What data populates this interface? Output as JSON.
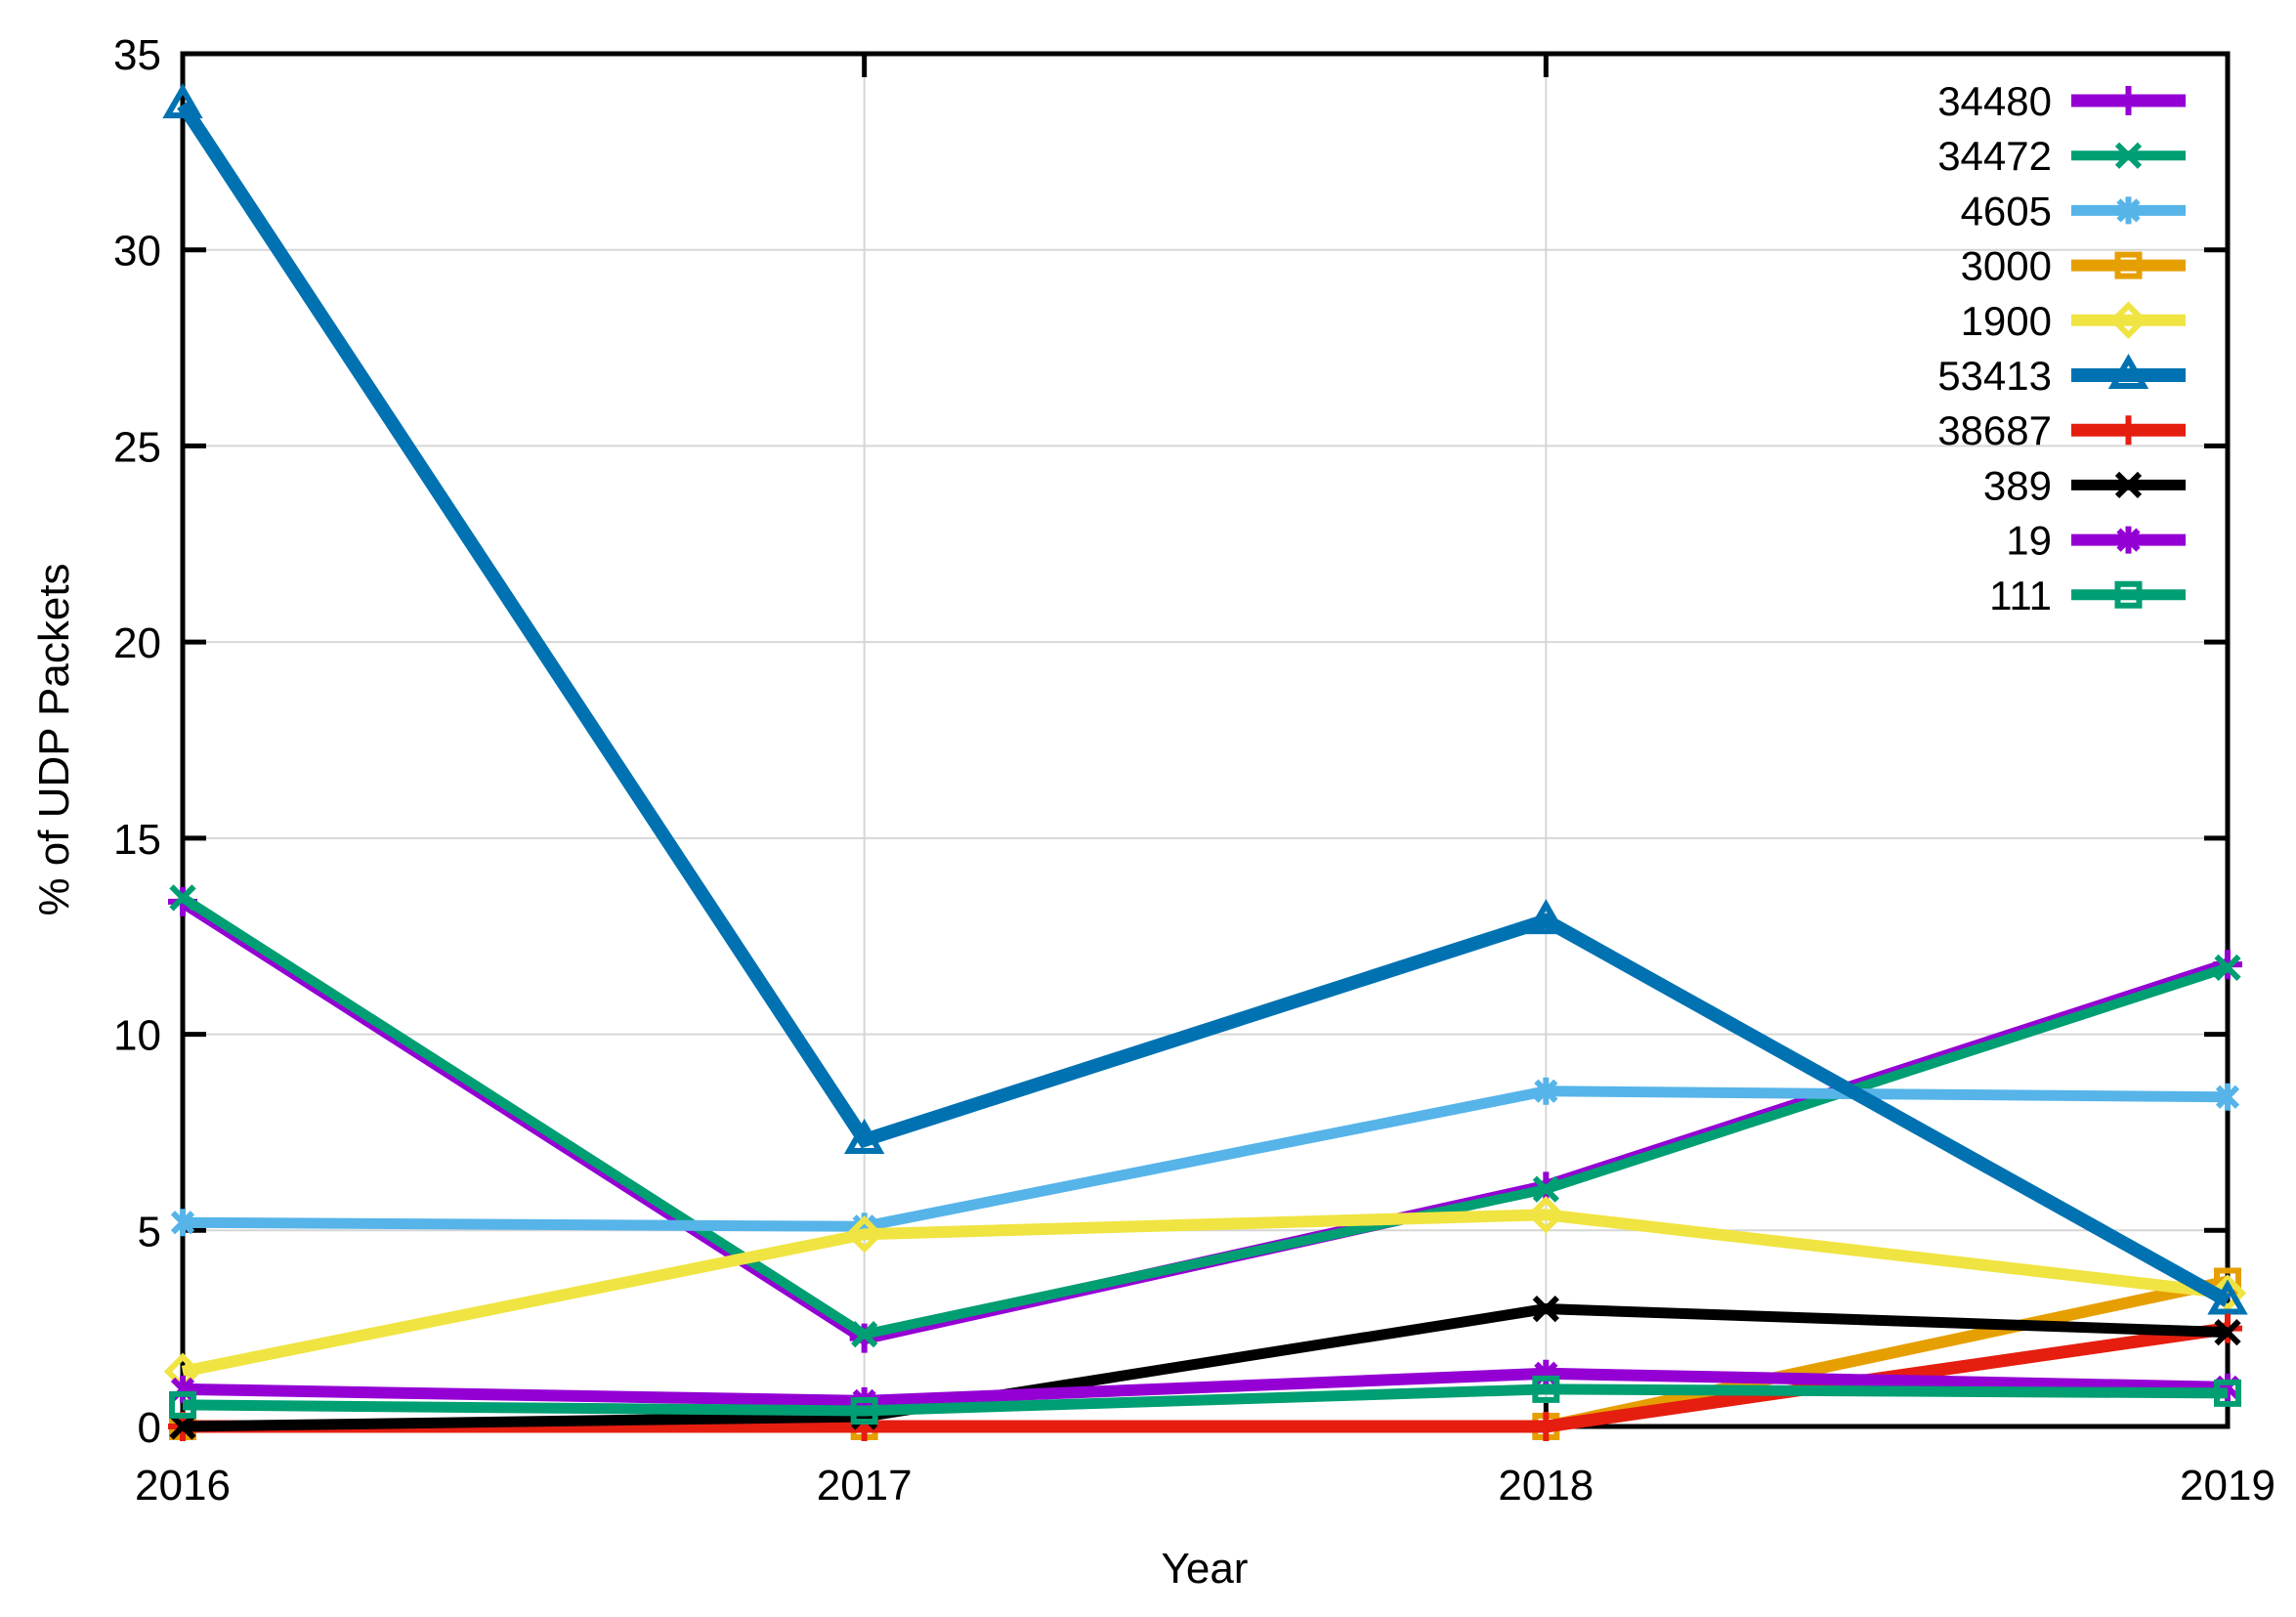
{
  "chart_data": {
    "type": "line",
    "title": "",
    "xlabel": "Year",
    "ylabel": "% of UDP Packets",
    "x": [
      2016,
      2017,
      2018,
      2019
    ],
    "xlim": [
      2016,
      2019
    ],
    "ylim": [
      0,
      35
    ],
    "yticks": [
      0,
      5,
      10,
      15,
      20,
      25,
      30,
      35
    ],
    "xticks": [
      2016,
      2017,
      2018,
      2019
    ],
    "grid": true,
    "grid_color": "#d6d6d6",
    "legend_position": "top-right-inside",
    "series": [
      {
        "name": "34480",
        "color": "#9400d3",
        "marker": "plus",
        "line_width": 13,
        "values": [
          13.38,
          2.25,
          6.12,
          11.78
        ]
      },
      {
        "name": "34472",
        "color": "#009e73",
        "marker": "x",
        "line_width": 10,
        "values": [
          13.48,
          2.35,
          6.05,
          11.7
        ]
      },
      {
        "name": "4605",
        "color": "#56b4e9",
        "marker": "asterisk",
        "line_width": 11,
        "values": [
          5.2,
          5.1,
          8.55,
          8.4
        ]
      },
      {
        "name": "3000",
        "color": "#e69f00",
        "marker": "square",
        "line_width": 12,
        "values": [
          0.0,
          0.0,
          0.0,
          3.7
        ]
      },
      {
        "name": "1900",
        "color": "#f0e442",
        "marker": "diamond",
        "line_width": 12,
        "values": [
          1.4,
          4.9,
          5.4,
          3.4
        ]
      },
      {
        "name": "53413",
        "color": "#0072b2",
        "marker": "triangle",
        "line_width": 14,
        "values": [
          33.7,
          7.3,
          12.9,
          3.2
        ]
      },
      {
        "name": "38687",
        "color": "#e51e10",
        "marker": "plus",
        "line_width": 13,
        "values": [
          0.0,
          0.0,
          0.0,
          2.5
        ]
      },
      {
        "name": "389",
        "color": "#000000",
        "marker": "x",
        "line_width": 11,
        "values": [
          0.0,
          0.25,
          3.0,
          2.4
        ]
      },
      {
        "name": "19",
        "color": "#9400d3",
        "marker": "asterisk",
        "line_width": 12,
        "values": [
          0.95,
          0.65,
          1.35,
          1.0
        ]
      },
      {
        "name": "111",
        "color": "#009e73",
        "marker": "square",
        "line_width": 11,
        "values": [
          0.55,
          0.4,
          0.95,
          0.85
        ]
      }
    ]
  }
}
